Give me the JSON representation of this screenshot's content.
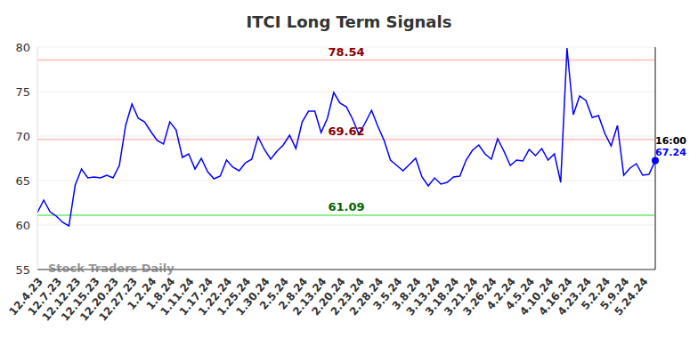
{
  "chart_data": {
    "type": "line",
    "title": "ITCI Long Term Signals",
    "watermark": "Stock Traders Daily",
    "categories": [
      "12.4.23",
      null,
      null,
      "12.7.23",
      null,
      null,
      "12.12.23",
      null,
      null,
      "12.15.23",
      null,
      null,
      "12.20.23",
      null,
      null,
      "12.27.23",
      null,
      null,
      "1.2.24",
      null,
      null,
      "1.8.24",
      null,
      null,
      "1.11.24",
      null,
      null,
      "1.17.24",
      null,
      null,
      "1.22.24",
      null,
      null,
      "1.25.24",
      null,
      null,
      "1.30.24",
      null,
      null,
      "2.5.24",
      null,
      null,
      "2.8.24",
      null,
      null,
      "2.13.24",
      null,
      null,
      "2.20.24",
      null,
      null,
      "2.23.24",
      null,
      null,
      "2.28.24",
      null,
      null,
      "3.5.24",
      null,
      null,
      "3.8.24",
      null,
      null,
      "3.13.24",
      null,
      null,
      "3.18.24",
      null,
      null,
      "3.21.24",
      null,
      null,
      "3.26.24",
      null,
      null,
      "4.2.24",
      null,
      null,
      "4.5.24",
      null,
      null,
      "4.10.24",
      null,
      null,
      "4.16.24",
      null,
      null,
      "4.23.24",
      null,
      null,
      "5.2.24",
      null,
      null,
      "5.9.24",
      null,
      null,
      "5.24.24",
      null,
      null
    ],
    "values": [
      61.4,
      62.8,
      61.5,
      61.0,
      60.3,
      59.9,
      64.5,
      66.3,
      65.3,
      65.4,
      65.3,
      65.6,
      65.3,
      66.7,
      71.2,
      73.6,
      72.0,
      71.6,
      70.5,
      69.5,
      69.1,
      71.6,
      70.7,
      67.6,
      68.0,
      66.3,
      67.5,
      66.0,
      65.2,
      65.5,
      67.3,
      66.5,
      66.1,
      67.0,
      67.4,
      69.9,
      68.5,
      67.4,
      68.3,
      69.0,
      70.1,
      68.6,
      71.6,
      72.8,
      72.8,
      70.4,
      72.0,
      74.9,
      73.7,
      73.3,
      71.9,
      70.2,
      71.5,
      72.9,
      71.1,
      69.5,
      67.3,
      66.7,
      66.1,
      66.8,
      67.5,
      65.4,
      64.4,
      65.3,
      64.6,
      64.8,
      65.4,
      65.5,
      67.3,
      68.4,
      69.0,
      68.0,
      67.4,
      69.7,
      68.3,
      66.7,
      67.3,
      67.2,
      68.5,
      67.8,
      68.6,
      67.3,
      68.0,
      64.8,
      79.9,
      72.4,
      74.5,
      74.0,
      72.1,
      72.3,
      70.3,
      68.9,
      71.2,
      65.6,
      66.4,
      66.9,
      65.6,
      65.7,
      67.24
    ],
    "color": "#0000ff",
    "ylim": [
      55,
      80
    ],
    "yticks": [
      55,
      60,
      65,
      70,
      75,
      80
    ],
    "grid": true,
    "reference_lines": [
      {
        "value": 78.54,
        "label": "78.54",
        "color": "#ffc8c8",
        "label_color": "#8b0000"
      },
      {
        "value": 69.62,
        "label": "69.62",
        "color": "#ffc8c8",
        "label_color": "#8b0000"
      },
      {
        "value": 61.09,
        "label": "61.09",
        "color": "#90ee90",
        "label_color": "#006400"
      }
    ],
    "last_label": {
      "time": "16:00",
      "value": 67.24,
      "label": "67.24"
    }
  }
}
